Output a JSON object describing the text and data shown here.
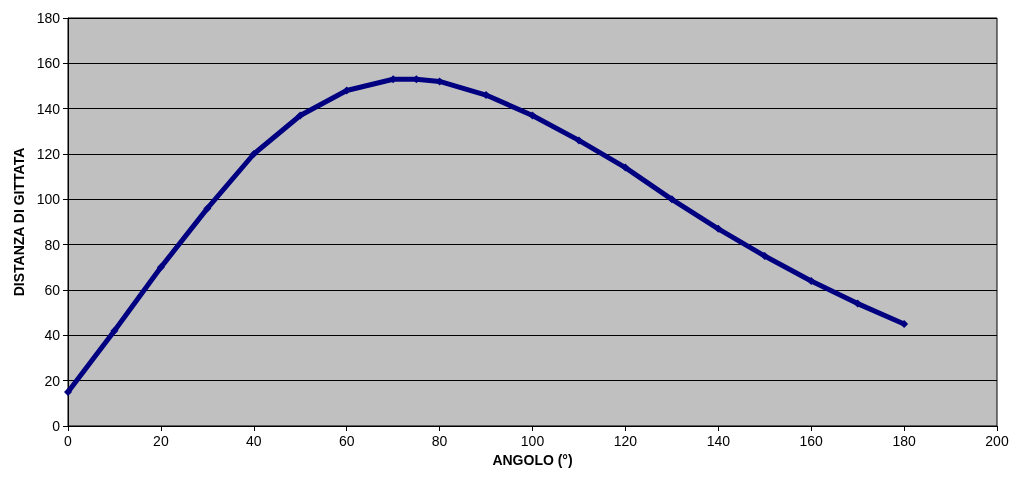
{
  "chart_data": {
    "type": "line",
    "xlabel": "ANGOLO (°)",
    "ylabel": "DISTANZA DI GITTATA",
    "x": [
      0,
      10,
      20,
      30,
      40,
      50,
      60,
      70,
      75,
      80,
      90,
      100,
      110,
      120,
      130,
      140,
      150,
      160,
      170,
      180
    ],
    "series": [
      {
        "color": "#000080",
        "values": [
          15,
          42,
          70,
          96,
          120,
          137,
          148,
          153,
          153,
          152,
          146,
          137,
          126,
          114,
          100,
          87,
          75,
          64,
          54,
          45
        ]
      }
    ],
    "xlim": [
      0,
      200
    ],
    "xticks": [
      0,
      20,
      40,
      60,
      80,
      100,
      120,
      140,
      160,
      180,
      200
    ],
    "ylim": [
      0,
      180
    ],
    "yticks": [
      0,
      20,
      40,
      60,
      80,
      100,
      120,
      140,
      160,
      180
    ],
    "grid": "y",
    "marker": "diamond",
    "line_style": "solid"
  }
}
